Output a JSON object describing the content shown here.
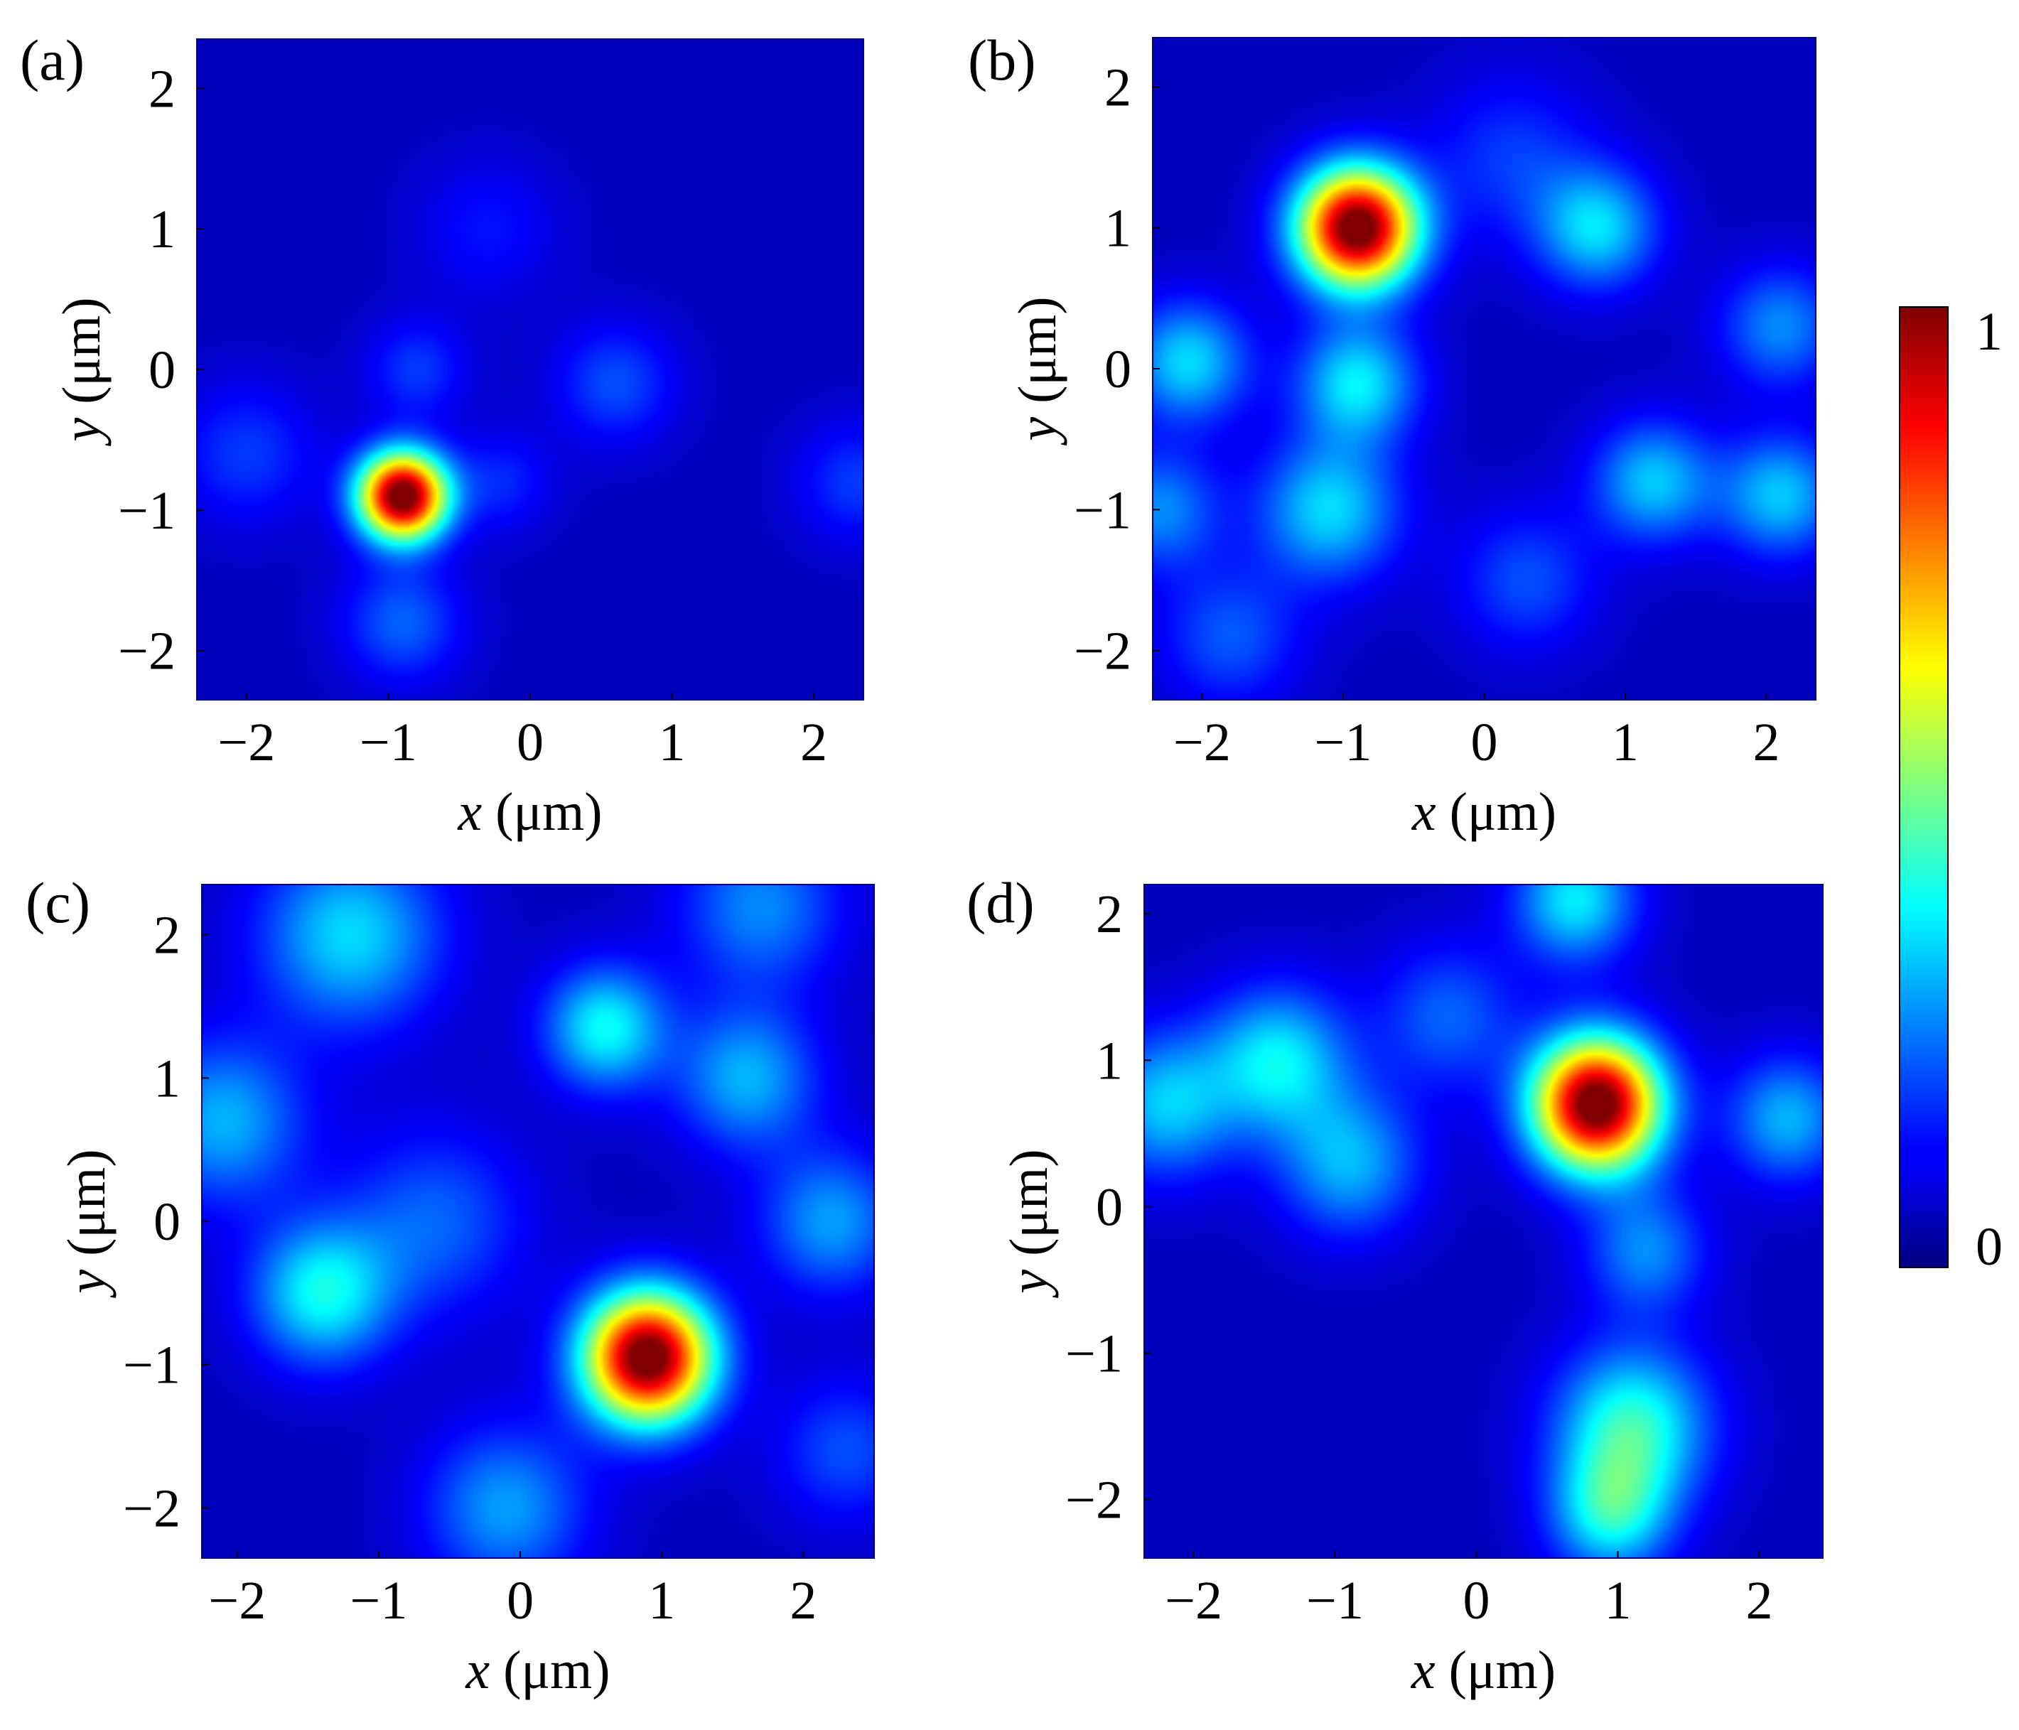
{
  "chart_data": [
    {
      "type": "heatmap",
      "panel_label": "(a)",
      "xlabel_var": "x",
      "xlabel_unit": " (μm)",
      "ylabel_var": "y",
      "ylabel_unit": " (μm)",
      "xlim": [
        -2.35,
        2.35
      ],
      "ylim": [
        -2.35,
        2.35
      ],
      "xticks": [
        -2,
        -1,
        0,
        1,
        2
      ],
      "xtick_labels": [
        "−2",
        "−1",
        "0",
        "1",
        "2"
      ],
      "yticks": [
        -2,
        -1,
        0,
        1,
        2
      ],
      "ytick_labels": [
        "−2",
        "−1",
        "0",
        "1",
        "2"
      ],
      "peak": {
        "x": -0.9,
        "y": -0.9,
        "value": 1.0,
        "width": 0.22
      },
      "background_blobs": [
        {
          "x": -0.9,
          "y": -1.8,
          "value": 0.16,
          "width": 0.3
        },
        {
          "x": -2.0,
          "y": -0.6,
          "value": 0.12,
          "width": 0.35
        },
        {
          "x": -0.8,
          "y": 0.0,
          "value": 0.12,
          "width": 0.25
        },
        {
          "x": 0.6,
          "y": -0.1,
          "value": 0.14,
          "width": 0.3
        },
        {
          "x": 2.3,
          "y": -0.8,
          "value": 0.12,
          "width": 0.3
        },
        {
          "x": -0.3,
          "y": 1.0,
          "value": 0.08,
          "width": 0.35
        },
        {
          "x": -0.2,
          "y": -0.8,
          "value": 0.1,
          "width": 0.25
        }
      ],
      "colormap": "jet"
    },
    {
      "type": "heatmap",
      "panel_label": "(b)",
      "xlabel_var": "x",
      "xlabel_unit": " (μm)",
      "ylabel_var": "y",
      "ylabel_unit": " (μm)",
      "xlim": [
        -2.35,
        2.35
      ],
      "ylim": [
        -2.35,
        2.35
      ],
      "xticks": [
        -2,
        -1,
        0,
        1,
        2
      ],
      "xtick_labels": [
        "−2",
        "−1",
        "0",
        "1",
        "2"
      ],
      "yticks": [
        -2,
        -1,
        0,
        1,
        2
      ],
      "ytick_labels": [
        "−2",
        "−1",
        "0",
        "1",
        "2"
      ],
      "peak": {
        "x": -0.9,
        "y": 1.0,
        "value": 1.0,
        "width": 0.3
      },
      "background_blobs": [
        {
          "x": -2.1,
          "y": 0.05,
          "value": 0.28,
          "width": 0.3
        },
        {
          "x": -0.9,
          "y": -0.1,
          "value": 0.3,
          "width": 0.3
        },
        {
          "x": -1.1,
          "y": -1.0,
          "value": 0.28,
          "width": 0.35
        },
        {
          "x": 0.8,
          "y": 1.0,
          "value": 0.28,
          "width": 0.3
        },
        {
          "x": 1.2,
          "y": -0.8,
          "value": 0.26,
          "width": 0.3
        },
        {
          "x": 2.1,
          "y": -0.9,
          "value": 0.26,
          "width": 0.3
        },
        {
          "x": 2.1,
          "y": 0.3,
          "value": 0.2,
          "width": 0.3
        },
        {
          "x": -2.3,
          "y": -1.0,
          "value": 0.2,
          "width": 0.3
        },
        {
          "x": -1.8,
          "y": -1.9,
          "value": 0.15,
          "width": 0.35
        },
        {
          "x": 0.2,
          "y": 1.5,
          "value": 0.12,
          "width": 0.4
        },
        {
          "x": 0.3,
          "y": -1.5,
          "value": 0.14,
          "width": 0.35
        }
      ],
      "colormap": "jet"
    },
    {
      "type": "heatmap",
      "panel_label": "(c)",
      "xlabel_var": "x",
      "xlabel_unit": " (μm)",
      "ylabel_var": "y",
      "ylabel_unit": " (μm)",
      "xlim": [
        -2.25,
        2.5
      ],
      "ylim": [
        -2.35,
        2.35
      ],
      "xticks": [
        -2,
        -1,
        0,
        1,
        2
      ],
      "xtick_labels": [
        "−2",
        "−1",
        "0",
        "1",
        "2"
      ],
      "yticks": [
        -2,
        -1,
        0,
        1,
        2
      ],
      "ytick_labels": [
        "−2",
        "−1",
        "0",
        "1",
        "2"
      ],
      "peak": {
        "x": 0.9,
        "y": -0.95,
        "value": 1.0,
        "width": 0.32
      },
      "background_blobs": [
        {
          "x": 0.6,
          "y": 1.35,
          "value": 0.32,
          "width": 0.3
        },
        {
          "x": -1.4,
          "y": -0.5,
          "value": 0.32,
          "width": 0.35
        },
        {
          "x": -1.2,
          "y": 2.0,
          "value": 0.28,
          "width": 0.45
        },
        {
          "x": -2.1,
          "y": 0.7,
          "value": 0.24,
          "width": 0.4
        },
        {
          "x": 1.6,
          "y": 1.0,
          "value": 0.24,
          "width": 0.35
        },
        {
          "x": 2.2,
          "y": 0.0,
          "value": 0.22,
          "width": 0.35
        },
        {
          "x": -0.1,
          "y": -2.0,
          "value": 0.22,
          "width": 0.4
        },
        {
          "x": -0.6,
          "y": 0.0,
          "value": 0.16,
          "width": 0.45
        },
        {
          "x": 1.7,
          "y": 2.2,
          "value": 0.2,
          "width": 0.4
        },
        {
          "x": 2.3,
          "y": -1.6,
          "value": 0.14,
          "width": 0.35
        }
      ],
      "colormap": "jet"
    },
    {
      "type": "heatmap",
      "panel_label": "(d)",
      "xlabel_var": "x",
      "xlabel_unit": " (μm)",
      "ylabel_var": "y",
      "ylabel_unit": " (μm)",
      "xlim": [
        -2.35,
        2.45
      ],
      "ylim": [
        -2.4,
        2.2
      ],
      "xticks": [
        -2,
        -1,
        0,
        1,
        2
      ],
      "xtick_labels": [
        "−2",
        "−1",
        "0",
        "1",
        "2"
      ],
      "yticks": [
        -2,
        -1,
        0,
        1,
        2
      ],
      "ytick_labels": [
        "−2",
        "−1",
        "0",
        "1",
        "2"
      ],
      "peak": {
        "x": 0.85,
        "y": 0.7,
        "value": 1.0,
        "width": 0.32
      },
      "background_blobs": [
        {
          "x": -1.4,
          "y": 1.0,
          "value": 0.3,
          "width": 0.35
        },
        {
          "x": -0.9,
          "y": 0.3,
          "value": 0.24,
          "width": 0.35
        },
        {
          "x": -2.2,
          "y": 0.7,
          "value": 0.26,
          "width": 0.35
        },
        {
          "x": 1.1,
          "y": -1.5,
          "value": 0.36,
          "width": 0.38
        },
        {
          "x": 0.95,
          "y": -2.1,
          "value": 0.3,
          "width": 0.3
        },
        {
          "x": 0.7,
          "y": 2.1,
          "value": 0.3,
          "width": 0.3
        },
        {
          "x": 2.2,
          "y": 0.6,
          "value": 0.24,
          "width": 0.3
        },
        {
          "x": 1.2,
          "y": -0.3,
          "value": 0.2,
          "width": 0.3
        },
        {
          "x": -0.2,
          "y": 1.3,
          "value": 0.16,
          "width": 0.35
        }
      ],
      "colormap": "jet"
    }
  ],
  "colorbar": {
    "colormap": "jet",
    "min": 0,
    "max": 1,
    "min_label": "0",
    "max_label": "1"
  }
}
